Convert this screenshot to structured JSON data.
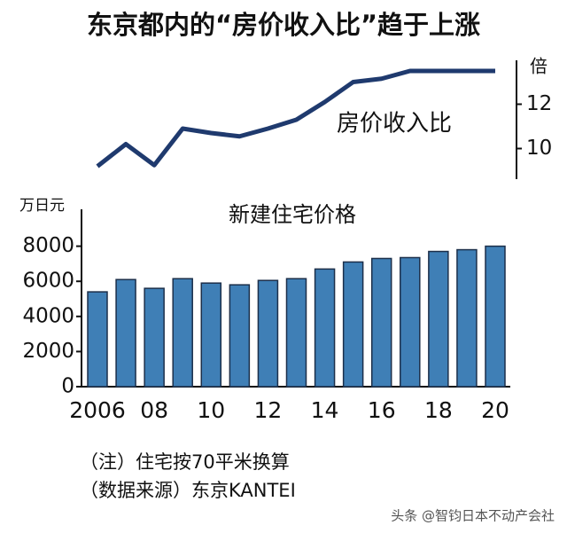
{
  "title": "东京都内的“房价收入比”趋于上涨",
  "chart_data": [
    {
      "type": "line",
      "label": "房价收入比",
      "y_unit": "倍",
      "color": "#1f3a6e",
      "values": [
        9.2,
        10.2,
        9.25,
        10.9,
        10.7,
        10.55,
        10.9,
        11.3,
        12.1,
        13.0,
        13.15,
        13.5,
        13.5,
        13.5,
        13.5
      ],
      "ylim": [
        8.7,
        13.9
      ],
      "yticks": [
        10,
        12
      ]
    },
    {
      "type": "bar",
      "title": "新建住宅价格",
      "y_unit": "万日元",
      "color": "#3f7fb6",
      "categories": [
        "2006",
        null,
        "08",
        null,
        "10",
        null,
        "12",
        null,
        "14",
        null,
        "16",
        null,
        "18",
        null,
        "20"
      ],
      "values": [
        5400,
        6100,
        5600,
        6150,
        5900,
        5800,
        6050,
        6150,
        6700,
        7100,
        7300,
        7350,
        7700,
        7800,
        8000
      ],
      "ylim": [
        0,
        10000
      ],
      "yticks": [
        0,
        2000,
        4000,
        6000,
        8000
      ]
    }
  ],
  "notes": [
    "（注）住宅按70平米换算",
    "（数据来源）东京KANTEI"
  ],
  "watermark": "头条 @智钧日本不动产会社"
}
